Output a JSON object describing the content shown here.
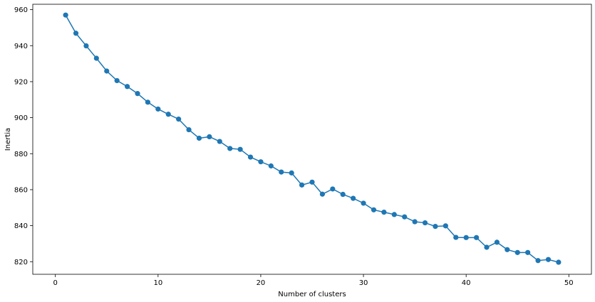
{
  "chart_data": {
    "type": "line",
    "title": "",
    "xlabel": "Number of clusters",
    "ylabel": "Inertia",
    "xlim": [
      -2.2,
      52.2
    ],
    "ylim": [
      813,
      963
    ],
    "xticks": [
      0,
      10,
      20,
      30,
      40,
      50
    ],
    "yticks": [
      820,
      840,
      860,
      880,
      900,
      920,
      940,
      960
    ],
    "grid": false,
    "legend": "none",
    "series_color": "#1f77b4",
    "marker": "circle",
    "x": [
      1,
      2,
      3,
      4,
      5,
      6,
      7,
      8,
      9,
      10,
      11,
      12,
      13,
      14,
      15,
      16,
      17,
      18,
      19,
      20,
      21,
      22,
      23,
      24,
      25,
      26,
      27,
      28,
      29,
      30,
      31,
      32,
      33,
      34,
      35,
      36,
      37,
      38,
      39,
      40,
      41,
      42,
      43,
      44,
      45,
      46,
      47,
      48,
      49
    ],
    "y": [
      957.0,
      946.9,
      939.9,
      933.0,
      925.9,
      920.6,
      917.3,
      913.4,
      908.6,
      904.8,
      901.9,
      899.2,
      893.3,
      888.6,
      889.4,
      886.8,
      882.9,
      882.4,
      878.1,
      875.5,
      873.2,
      869.8,
      869.3,
      862.6,
      864.2,
      857.5,
      860.4,
      857.4,
      855.2,
      852.5,
      848.8,
      847.5,
      846.2,
      844.9,
      842.2,
      841.6,
      839.6,
      839.9,
      833.5,
      833.4,
      833.4,
      828.0,
      830.8,
      826.7,
      825.1,
      825.1,
      820.6,
      821.2,
      819.7
    ]
  }
}
